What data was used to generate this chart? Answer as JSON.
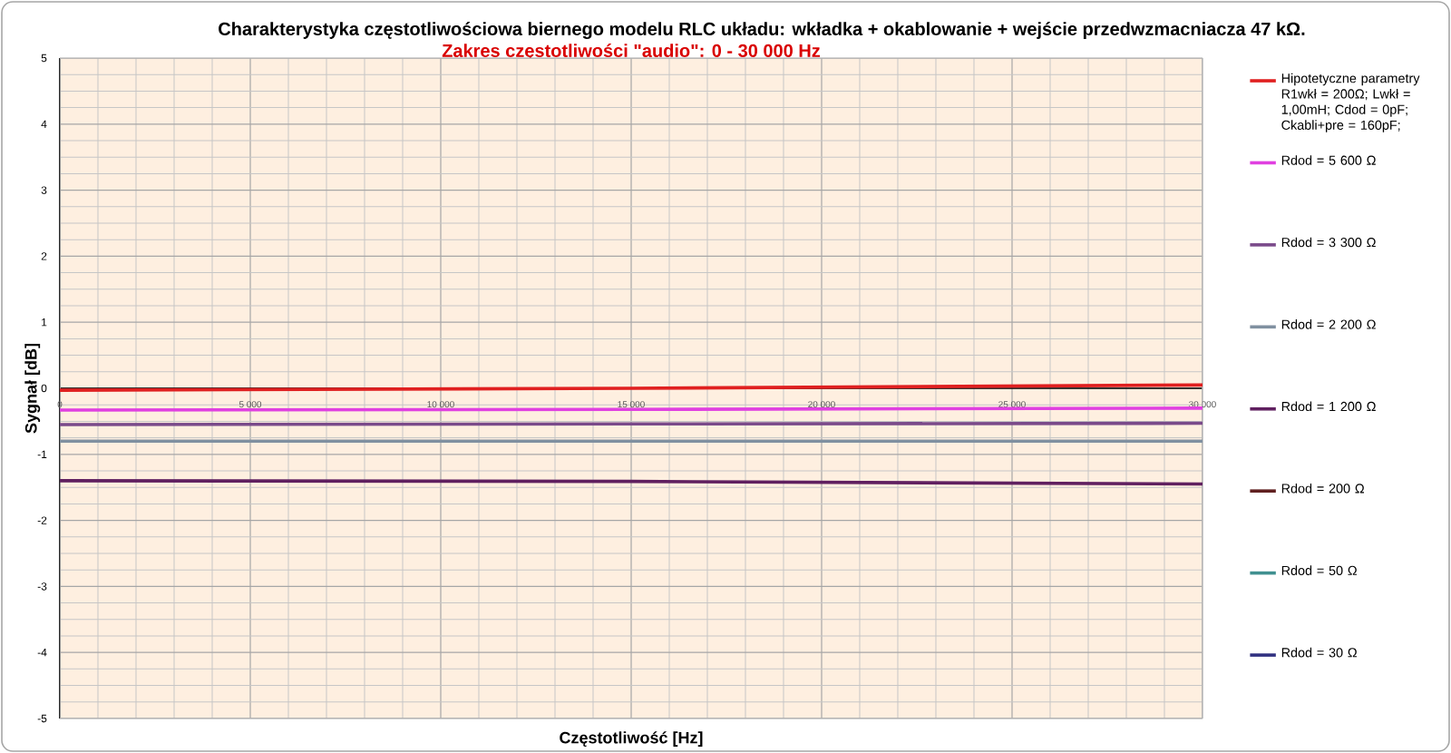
{
  "chart_data": {
    "type": "line",
    "title": "Charakterystyka częstotliwościowa biernego modelu RLC układu:    wkładka + okablowanie + wejście przedwzmacniacza 47 kΩ.",
    "subtitle": "Zakres częstotliwości \"audio\":  0  -  30 000 Hz",
    "xlabel": "Częstotliwość    [Hz]",
    "ylabel": "Sygnał   [dB]",
    "x": [
      0,
      15000,
      30000
    ],
    "xlim": [
      0,
      30000
    ],
    "ylim": [
      -5,
      5
    ],
    "xticks": [
      0,
      {
        "value": 5000,
        "label": "5 000"
      },
      {
        "value": 10000,
        "label": "10 000"
      },
      {
        "value": 15000,
        "label": "15 000"
      },
      {
        "value": 20000,
        "label": "20 000"
      },
      {
        "value": 25000,
        "label": "25 000"
      },
      {
        "value": 30000,
        "label": "30 000"
      }
    ],
    "yticks": [
      -5,
      -4,
      -3,
      -2,
      -1,
      0,
      1,
      2,
      3,
      4,
      5
    ],
    "grid": true,
    "legend": "right",
    "marker": "none",
    "line_style": "solid",
    "series": [
      {
        "name": "Hipotetyczne parametry R1wkł = 200Ω; Lwkł = 1,00mH; Cdod = 0pF; Ckabli+pre = 160pF;",
        "color": "#e02020",
        "values": [
          -0.03,
          0.0,
          0.05
        ]
      },
      {
        "name": "Rdod = 5 600  Ω",
        "color": "#e040e0",
        "values": [
          -0.33,
          -0.32,
          -0.3
        ]
      },
      {
        "name": "Rdod = 3 300  Ω",
        "color": "#7a4a8a",
        "values": [
          -0.55,
          -0.54,
          -0.53
        ]
      },
      {
        "name": "Rdod = 2 200  Ω",
        "color": "#8090a0",
        "values": [
          -0.8,
          -0.8,
          -0.8
        ]
      },
      {
        "name": "Rdod = 1 200  Ω",
        "color": "#602060",
        "values": [
          -1.4,
          -1.41,
          -1.45
        ]
      },
      {
        "name": "Rdod = 200  Ω",
        "color": "#602020",
        "values": [
          null,
          null,
          null
        ]
      },
      {
        "name": "Rdod = 50  Ω",
        "color": "#409090",
        "values": [
          null,
          null,
          null
        ]
      },
      {
        "name": "Rdod = 30  Ω",
        "color": "#303080",
        "values": [
          null,
          null,
          null
        ]
      }
    ]
  }
}
